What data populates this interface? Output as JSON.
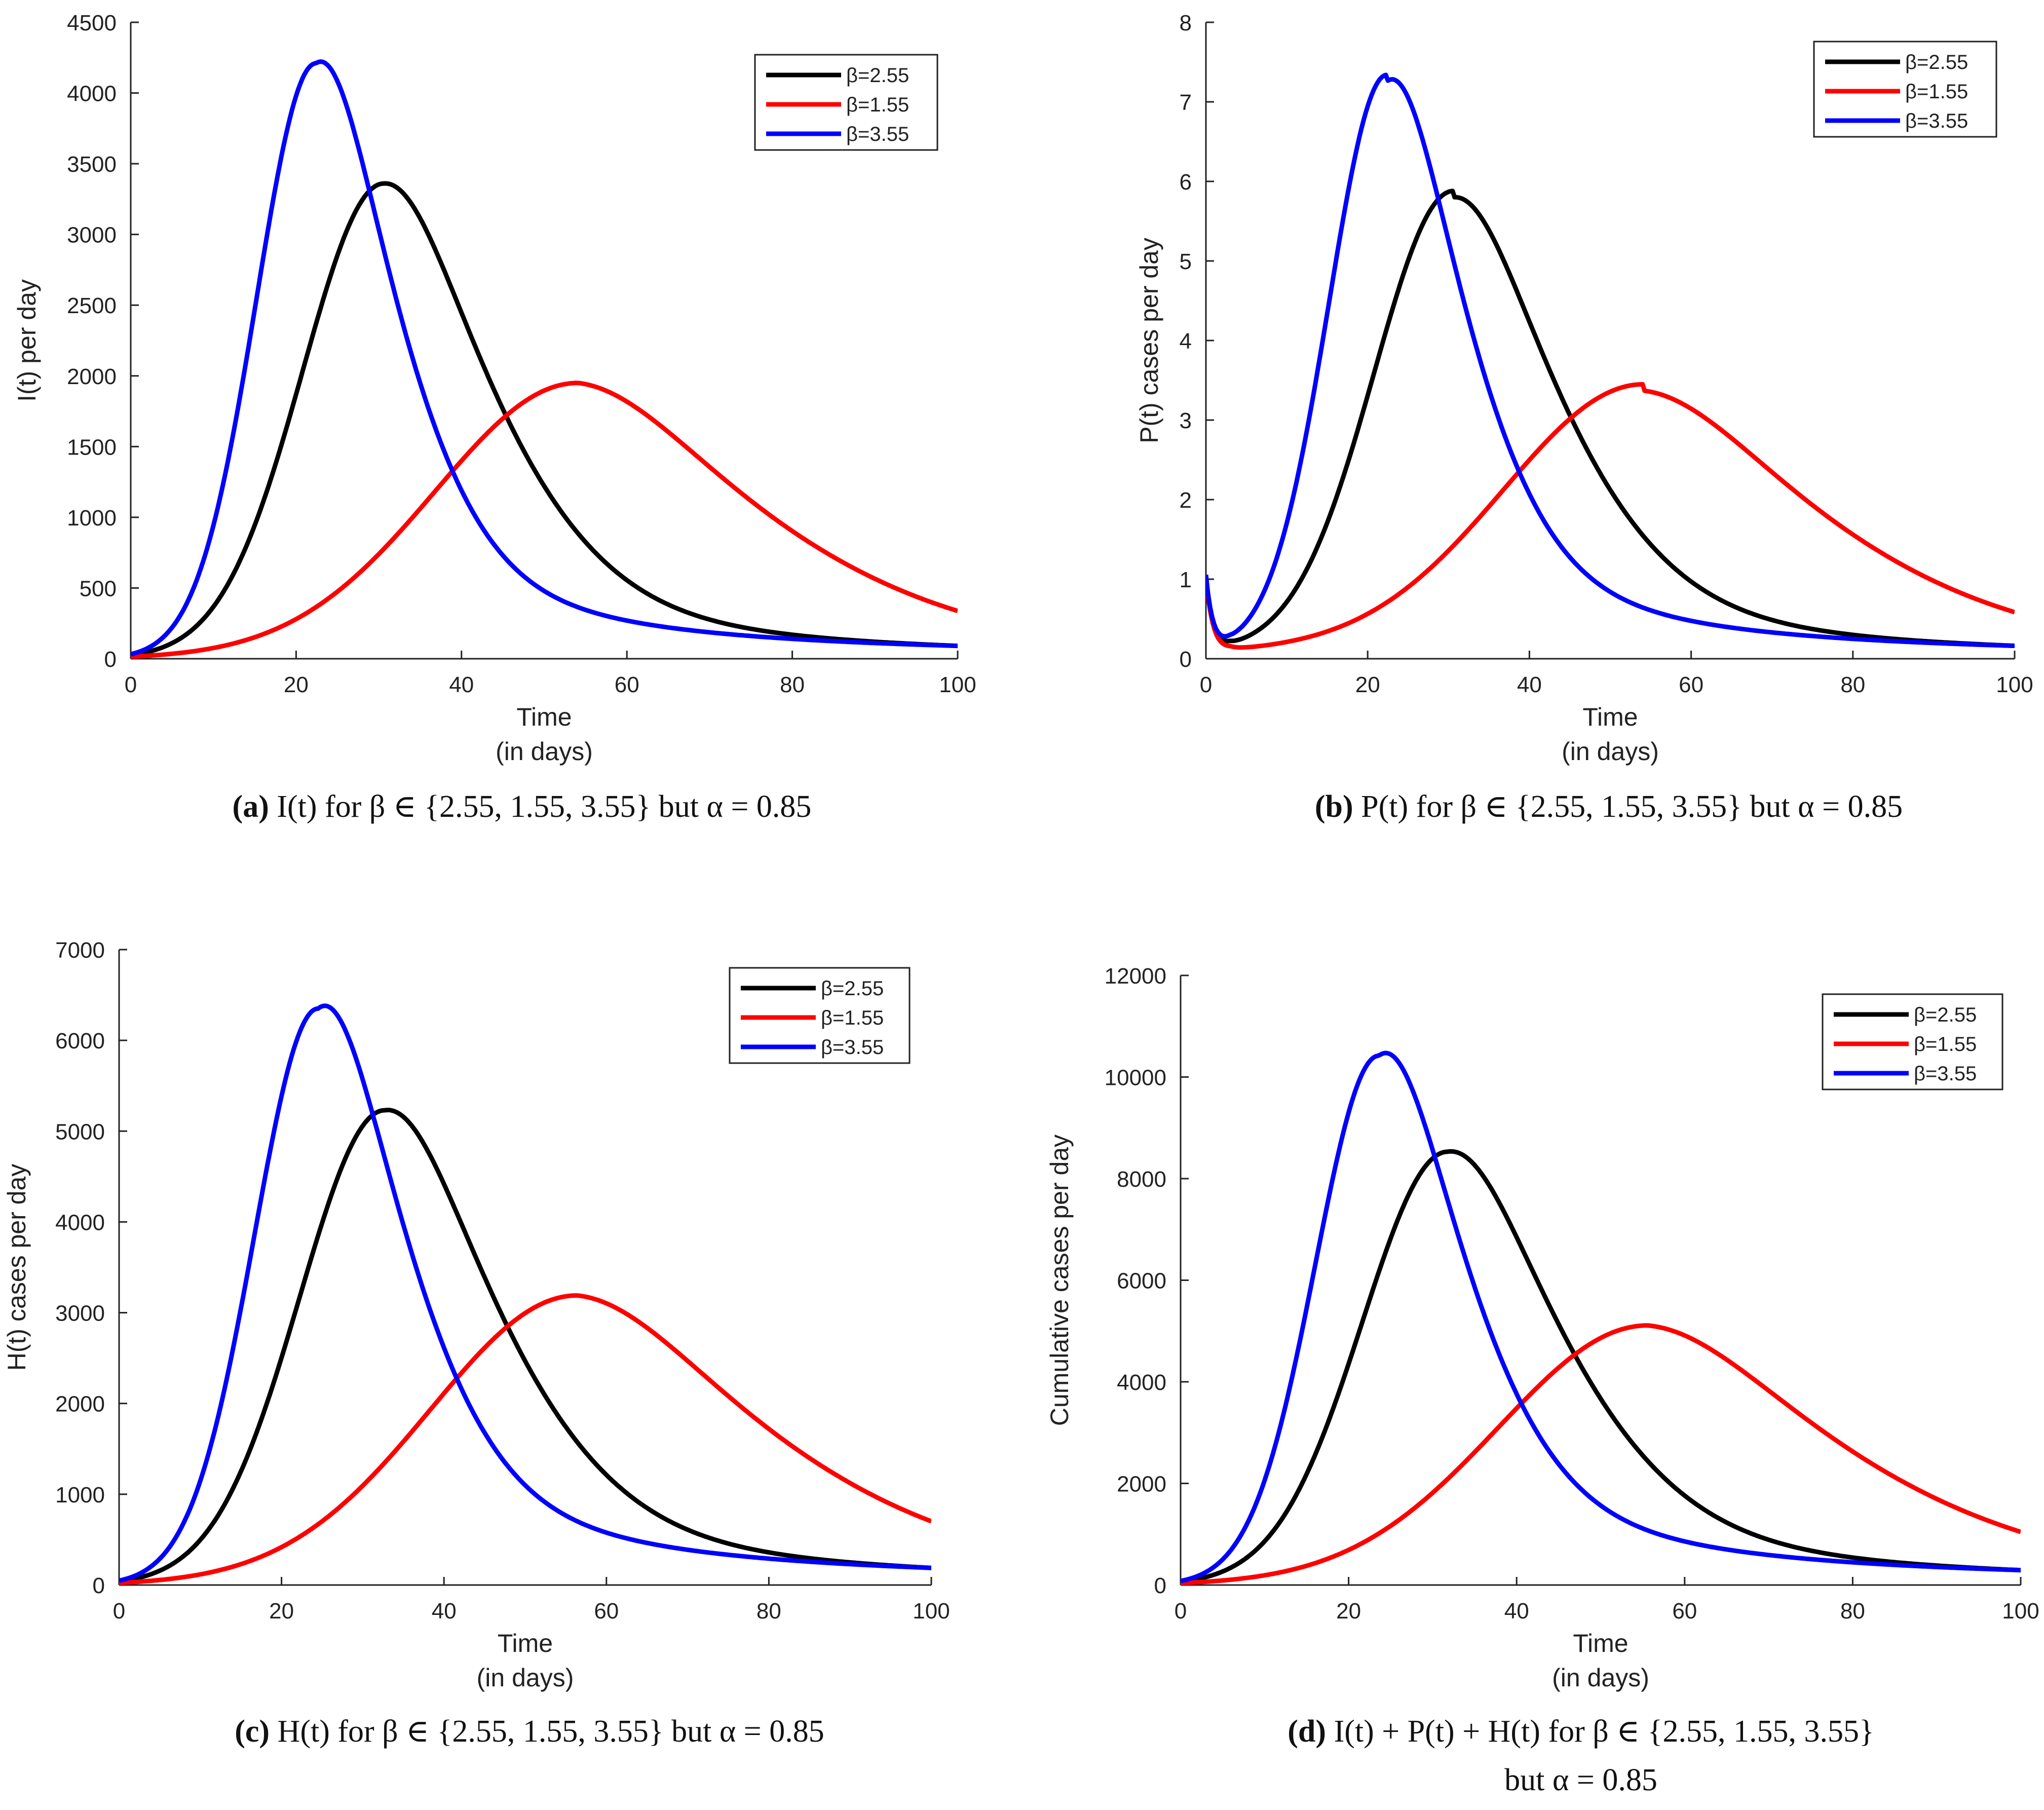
{
  "chart_data": [
    {
      "type": "line",
      "panel": "a",
      "xlabel": [
        "Time",
        "(in days)"
      ],
      "ylabel": "I(t) per day",
      "xlim": [
        0,
        100
      ],
      "ylim": [
        0,
        4500
      ],
      "xticks": [
        0,
        20,
        40,
        60,
        80,
        100
      ],
      "yticks": [
        0,
        500,
        1000,
        1500,
        2000,
        2500,
        3000,
        3500,
        4000,
        4500
      ],
      "legend_position": "top-right",
      "caption": {
        "label": "(a)",
        "text": "I(t) for β ∈ {2.55, 1.55, 3.55} but α = 0.85"
      },
      "series": [
        {
          "name": "β=2.55",
          "color": "#000000",
          "peak_x": 30.6,
          "peak_y": 3360,
          "end_y": 140
        },
        {
          "name": "β=1.55",
          "color": "#ff0000",
          "peak_x": 54.1,
          "peak_y": 1950,
          "end_y": 300
        },
        {
          "name": "β=3.55",
          "color": "#0000ff",
          "peak_x": 22.4,
          "peak_y": 4210,
          "end_y": 140
        }
      ]
    },
    {
      "type": "line",
      "panel": "b",
      "xlabel": [
        "Time",
        "(in days)"
      ],
      "ylabel": "P(t) cases per day",
      "xlim": [
        0,
        100
      ],
      "ylim": [
        0,
        8
      ],
      "xticks": [
        0,
        20,
        40,
        60,
        80,
        100
      ],
      "yticks": [
        0,
        1,
        2,
        3,
        4,
        5,
        6,
        7,
        8
      ],
      "start_y": 1.0,
      "legend_position": "top-right",
      "caption": {
        "label": "(b)",
        "text": "P(t) for β ∈ {2.55, 1.55, 3.55} but α = 0.85"
      },
      "series": [
        {
          "name": "β=2.55",
          "color": "#000000",
          "peak_x": 30.6,
          "peak_y": 5.8,
          "end_y": 0.25
        },
        {
          "name": "β=1.55",
          "color": "#ff0000",
          "peak_x": 54.1,
          "peak_y": 3.37,
          "end_y": 0.52
        },
        {
          "name": "β=3.55",
          "color": "#0000ff",
          "peak_x": 22.4,
          "peak_y": 7.26,
          "end_y": 0.25
        }
      ]
    },
    {
      "type": "line",
      "panel": "c",
      "xlabel": [
        "Time",
        "(in days)"
      ],
      "ylabel": "H(t) cases per day",
      "xlim": [
        0,
        100
      ],
      "ylim": [
        0,
        7000
      ],
      "xticks": [
        0,
        20,
        40,
        60,
        80,
        100
      ],
      "yticks": [
        0,
        1000,
        2000,
        3000,
        4000,
        5000,
        6000,
        7000
      ],
      "legend_position": "top-right",
      "caption": {
        "label": "(c)",
        "text": "H(t) for β ∈ {2.55, 1.55, 3.55} but α = 0.85"
      },
      "series": [
        {
          "name": "β=2.55",
          "color": "#000000",
          "peak_x": 32.7,
          "peak_y": 5230,
          "end_y": 290
        },
        {
          "name": "β=1.55",
          "color": "#ff0000",
          "peak_x": 56.4,
          "peak_y": 3190,
          "end_y": 610
        },
        {
          "name": "β=3.55",
          "color": "#0000ff",
          "peak_x": 24.5,
          "peak_y": 6350,
          "end_y": 290
        }
      ]
    },
    {
      "type": "line",
      "panel": "d",
      "xlabel": [
        "Time",
        "(in days)"
      ],
      "ylabel": "Cumulative cases per day",
      "xlim": [
        0,
        100
      ],
      "ylim": [
        0,
        12000
      ],
      "xticks": [
        0,
        20,
        40,
        60,
        80,
        100
      ],
      "yticks": [
        0,
        2000,
        4000,
        6000,
        8000,
        10000,
        12000
      ],
      "legend_position": "top-right",
      "caption": {
        "label": "(d)",
        "text": "I(t) + P(t) + H(t) for β ∈ {2.55, 1.55, 3.55}",
        "line2": "but α = 0.85"
      },
      "series": [
        {
          "name": "β=2.55",
          "color": "#000000",
          "peak_x": 31.8,
          "peak_y": 8530,
          "end_y": 450
        },
        {
          "name": "β=1.55",
          "color": "#ff0000",
          "peak_x": 55.6,
          "peak_y": 5110,
          "end_y": 920
        },
        {
          "name": "β=3.55",
          "color": "#0000ff",
          "peak_x": 23.6,
          "peak_y": 10420,
          "end_y": 450
        }
      ]
    }
  ]
}
